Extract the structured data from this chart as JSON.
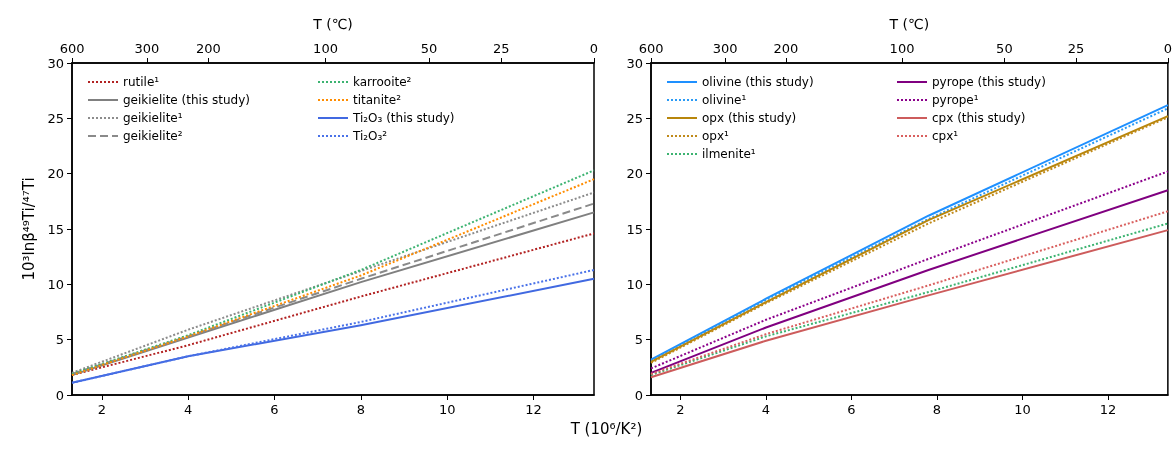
{
  "chart_data": [
    {
      "type": "line",
      "xlabel": "T (10⁶/K²)",
      "ylabel": "10³lnβ⁴⁹Ti/⁴⁷Ti",
      "x2label": "T (℃)",
      "legend": "top left",
      "xlim": [
        1.31,
        13.4
      ],
      "xticks": [
        2,
        4,
        6,
        8,
        10,
        12
      ],
      "ylim": [
        0,
        30
      ],
      "yticks": [
        0,
        5,
        10,
        15,
        20,
        25,
        30
      ],
      "annotations": [
        "600",
        "300",
        "200",
        "100",
        "50",
        "25",
        "0"
      ],
      "x": [
        1.31,
        4,
        8,
        13.4
      ],
      "series": [
        {
          "name": "rutile¹",
          "color": "#b22222",
          "line_style": "dotted",
          "values": [
            1.8,
            4.5,
            8.9,
            14.6
          ]
        },
        {
          "name": "geikielite (this study)",
          "color": "#808080",
          "line_style": "solid",
          "values": [
            1.8,
            5.2,
            10.2,
            16.5
          ]
        },
        {
          "name": "geikielite¹",
          "color": "#8c8c8c",
          "line_style": "dotted",
          "values": [
            2,
            5.9,
            11.2,
            18.3
          ]
        },
        {
          "name": "geikielite²",
          "color": "#8a8a8a",
          "line_style": "dashed",
          "values": [
            1.9,
            5.3,
            10.5,
            17.3
          ]
        },
        {
          "name": "karrooite²",
          "color": "#3cb371",
          "line_style": "dotted",
          "values": [
            1.9,
            5.4,
            11.3,
            20.3
          ]
        },
        {
          "name": "titanite²",
          "color": "#ff8c00",
          "line_style": "dotted",
          "values": [
            1.8,
            5.3,
            10.8,
            19.5
          ]
        },
        {
          "name": "Ti₂O₃ (this study)",
          "color": "#4169e1",
          "line_style": "solid",
          "values": [
            1.1,
            3.5,
            6.3,
            10.5
          ]
        },
        {
          "name": "Ti₂O₃²",
          "color": "#4a72e8",
          "line_style": "dotted",
          "values": [
            1.1,
            3.5,
            6.6,
            11.3
          ]
        }
      ]
    },
    {
      "type": "line",
      "x2label": "T (℃)",
      "legend": "top left",
      "xlim": [
        1.31,
        13.4
      ],
      "xticks": [
        2,
        4,
        6,
        8,
        10,
        12
      ],
      "ylim": [
        0,
        30
      ],
      "yticks": [
        0,
        5,
        10,
        15,
        20,
        25,
        30
      ],
      "annotations": [
        "600",
        "300",
        "200",
        "100",
        "50",
        "25",
        "0"
      ],
      "x": [
        1.31,
        4,
        7.8,
        13.4
      ],
      "series": [
        {
          "name": "olivine (this study)",
          "color": "#1e90ff",
          "line_style": "solid",
          "values": [
            3.2,
            8.7,
            16.2,
            26.2
          ]
        },
        {
          "name": "olivine¹",
          "color": "#2a9af5",
          "line_style": "dotted",
          "values": [
            3.1,
            8.6,
            15.9,
            25.9
          ]
        },
        {
          "name": "opx (this study)",
          "color": "#b8860b",
          "line_style": "solid",
          "values": [
            3,
            8.4,
            15.8,
            25.2
          ]
        },
        {
          "name": "opx¹",
          "color": "#c08a1a",
          "line_style": "dotted",
          "values": [
            2.9,
            8.3,
            15.5,
            25.1
          ]
        },
        {
          "name": "ilmenite¹",
          "color": "#3cb371",
          "line_style": "dotted",
          "values": [
            1.8,
            5.3,
            9.3,
            15.5
          ]
        },
        {
          "name": "pyrope (this study)",
          "color": "#800080",
          "line_style": "solid",
          "values": [
            2,
            6.1,
            11.3,
            18.5
          ]
        },
        {
          "name": "pyrope¹",
          "color": "#8b008b",
          "line_style": "dotted",
          "values": [
            2.4,
            6.8,
            12.3,
            20.2
          ]
        },
        {
          "name": "cpx (this study)",
          "color": "#cd5c5c",
          "line_style": "solid",
          "values": [
            1.6,
            4.9,
            9,
            14.9
          ]
        },
        {
          "name": "cpx¹",
          "color": "#d9605f",
          "line_style": "dotted",
          "values": [
            1.9,
            5.5,
            9.9,
            16.6
          ]
        }
      ]
    }
  ]
}
